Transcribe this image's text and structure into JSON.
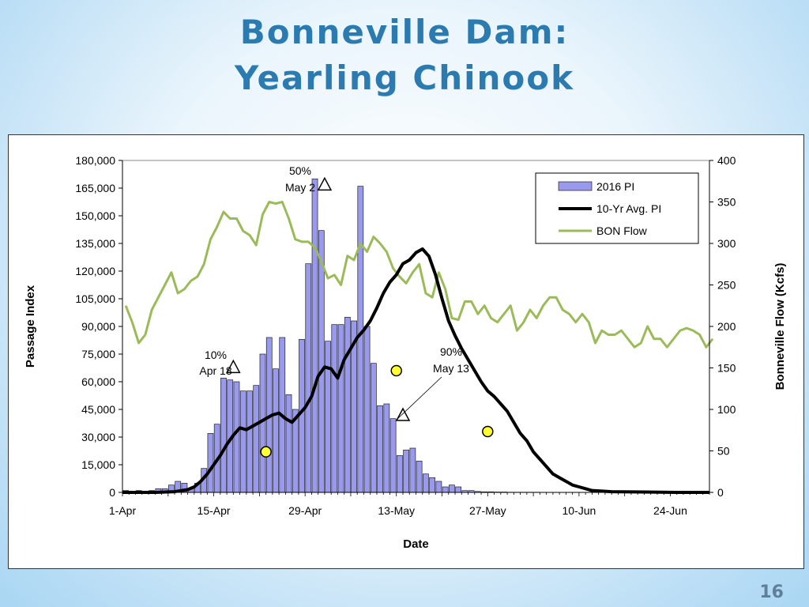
{
  "slide": {
    "title_line1": "Bonneville Dam:",
    "title_line2": "Yearling Chinook",
    "page_number": "16"
  },
  "chart_data": {
    "type": "bar",
    "title": "",
    "xlabel": "Date",
    "ylabel": "Passage Index",
    "y2label": "Bonneville  Flow  (Kcfs)",
    "ylim": [
      0,
      180000
    ],
    "y2lim": [
      0,
      400
    ],
    "yticks": [
      "180,000",
      "165,000",
      "150,000",
      "135,000",
      "120,000",
      "105,000",
      "90,000",
      "75,000",
      "60,000",
      "45,000",
      "30,000",
      "15,000",
      "0"
    ],
    "y2ticks": [
      "400",
      "350",
      "300",
      "250",
      "200",
      "150",
      "100",
      "50",
      "0"
    ],
    "x_tick_labels": [
      "1-Apr",
      "15-Apr",
      "29-Apr",
      "13-May",
      "27-May",
      "10-Jun",
      "24-Jun"
    ],
    "x_tick_days": [
      0,
      14,
      28,
      42,
      56,
      70,
      84
    ],
    "x_range_days": [
      0,
      90
    ],
    "legend": [
      "2016 PI",
      "10-Yr Avg. PI",
      "BON Flow"
    ],
    "colors": {
      "bars": "#9999ee",
      "avg": "#000000",
      "flow": "#9bbb59"
    },
    "series": [
      {
        "name": "2016 PI",
        "type": "bar",
        "values": [
          1000,
          500,
          1000,
          500,
          1000,
          2000,
          2000,
          4000,
          6000,
          5000,
          2000,
          5000,
          13000,
          32000,
          37000,
          62000,
          61000,
          60000,
          55000,
          55000,
          58000,
          75000,
          84000,
          67000,
          84000,
          53000,
          45000,
          83000,
          124000,
          170000,
          142000,
          82000,
          91000,
          91000,
          95000,
          93000,
          166000,
          90000,
          70000,
          47000,
          48000,
          40000,
          20000,
          23000,
          24000,
          17000,
          10000,
          8000,
          6000,
          3000,
          4000,
          3000,
          1000,
          1000,
          500,
          300,
          300,
          200,
          200,
          100,
          100,
          100,
          100,
          100,
          50,
          50,
          50,
          50,
          50,
          50,
          50,
          50,
          50,
          50,
          50,
          50,
          50,
          50,
          50,
          50,
          50,
          50,
          50,
          50,
          50,
          50,
          50,
          50,
          50,
          50
        ]
      },
      {
        "name": "10-Yr Avg. PI",
        "type": "line",
        "x": [
          0,
          5,
          8,
          10,
          11,
          12,
          13,
          14,
          15,
          16,
          17,
          18,
          19,
          20,
          21,
          22,
          23,
          24,
          25,
          26,
          27,
          28,
          29,
          30,
          31,
          32,
          33,
          34,
          35,
          36,
          37,
          38,
          39,
          40,
          41,
          42,
          43,
          44,
          45,
          46,
          47,
          48,
          49,
          50,
          51,
          52,
          53,
          54,
          55,
          56,
          57,
          58,
          59,
          60,
          61,
          62,
          63,
          64,
          65,
          66,
          67,
          68,
          69,
          70,
          71,
          72,
          73,
          75,
          80,
          85,
          90
        ],
        "values": [
          0,
          0,
          400,
          1500,
          3000,
          6000,
          10000,
          15000,
          20000,
          26000,
          31000,
          35000,
          34000,
          36000,
          38000,
          40000,
          42000,
          43000,
          40000,
          38000,
          42000,
          46000,
          52000,
          63000,
          68000,
          67000,
          62000,
          72000,
          78000,
          84000,
          88000,
          93000,
          100000,
          108000,
          114000,
          118000,
          124000,
          126000,
          130000,
          132000,
          128000,
          118000,
          105000,
          93000,
          85000,
          78000,
          72000,
          66000,
          60000,
          55000,
          52000,
          48000,
          44000,
          38000,
          32000,
          28000,
          22000,
          18000,
          14000,
          10000,
          8000,
          6000,
          4000,
          3000,
          2000,
          1000,
          800,
          400,
          200,
          0,
          0
        ]
      },
      {
        "name": "BON Flow",
        "type": "line",
        "values": [
          225,
          205,
          180,
          190,
          220,
          235,
          250,
          265,
          240,
          245,
          255,
          260,
          275,
          305,
          320,
          338,
          330,
          330,
          315,
          310,
          298,
          335,
          350,
          348,
          350,
          330,
          305,
          302,
          302,
          295,
          278,
          258,
          262,
          250,
          285,
          280,
          300,
          290,
          308,
          300,
          290,
          270,
          260,
          252,
          265,
          275,
          240,
          235,
          265,
          245,
          210,
          208,
          230,
          230,
          215,
          225,
          210,
          205,
          215,
          225,
          195,
          205,
          220,
          210,
          225,
          235,
          235,
          220,
          215,
          205,
          215,
          205,
          180,
          195,
          190,
          190,
          195,
          185,
          175,
          180,
          200,
          185,
          185,
          175,
          185,
          195,
          198,
          195,
          190,
          175,
          185
        ]
      }
    ],
    "annotations": [
      {
        "text_pct": "10%",
        "text_date": "Apr 18"
      },
      {
        "text_pct": "50%",
        "text_date": "May 2"
      },
      {
        "text_pct": "90%",
        "text_date": "May 13"
      }
    ],
    "marker_points": {
      "triangles_2016": [
        {
          "day": 17,
          "value": 68000
        },
        {
          "day": 31,
          "value": 167000
        },
        {
          "day": 43,
          "value": 42000
        }
      ],
      "circles_avg": [
        {
          "day": 22,
          "value": 22000
        },
        {
          "day": 42,
          "value": 66000
        },
        {
          "day": 56,
          "value": 33000
        }
      ]
    }
  }
}
